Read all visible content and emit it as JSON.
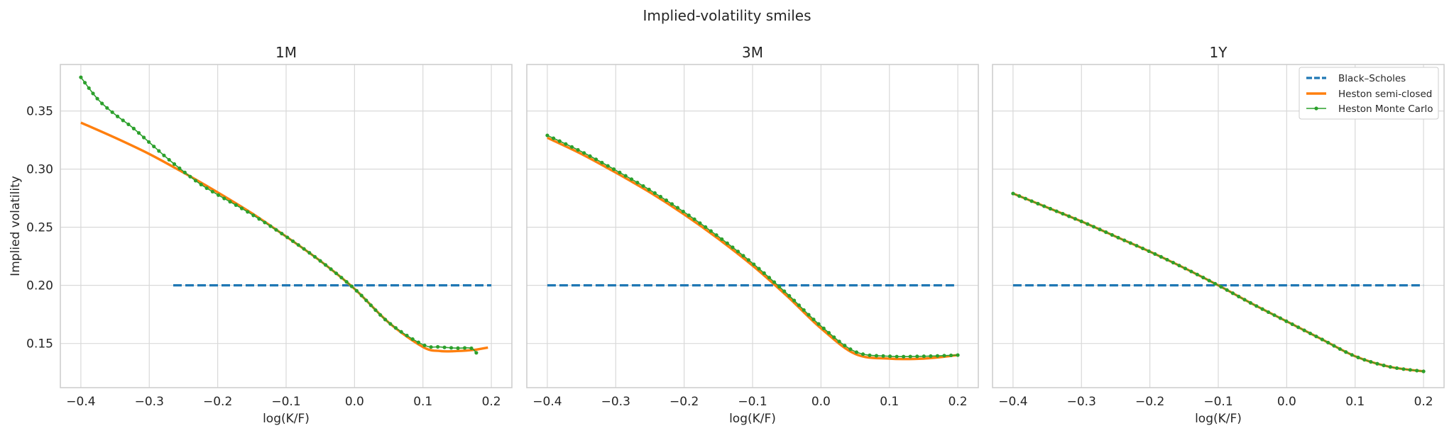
{
  "figure": {
    "suptitle": "Implied-volatility smiles"
  },
  "legend": {
    "placement": "top-right of 1Y panel",
    "entries": [
      "Black–Scholes",
      "Heston semi-closed",
      "Heston Monte Carlo"
    ]
  },
  "colors": {
    "bs": "#1f77b4",
    "heston": "#ff7f0e",
    "mc": "#2ca02c",
    "grid": "#d9d9d9",
    "frame": "#cccccc"
  },
  "chart_data": [
    {
      "type": "line",
      "title": "1M",
      "xlabel": "log(K/F)",
      "ylabel": "Implied volatility",
      "xlim": [
        -0.43,
        0.23
      ],
      "ylim": [
        0.112,
        0.39
      ],
      "xticks": [
        "−0.4",
        "−0.3",
        "−0.2",
        "−0.1",
        "0.0",
        "0.1",
        "0.2"
      ],
      "yticks": [
        "0.15",
        "0.20",
        "0.25",
        "0.30",
        "0.35"
      ],
      "grid": true,
      "series": [
        {
          "name": "Black–Scholes",
          "style": "dashed",
          "x": [
            -0.265,
            0.2
          ],
          "y": [
            0.2,
            0.2
          ]
        },
        {
          "name": "Heston semi-closed",
          "style": "solid",
          "x": [
            -0.4,
            -0.35,
            -0.3,
            -0.25,
            -0.2,
            -0.15,
            -0.1,
            -0.05,
            0.0,
            0.05,
            0.1,
            0.125,
            0.15,
            0.175,
            0.195
          ],
          "y": [
            0.34,
            0.327,
            0.313,
            0.297,
            0.28,
            0.262,
            0.242,
            0.221,
            0.197,
            0.168,
            0.147,
            0.1435,
            0.1435,
            0.1445,
            0.1465
          ]
        },
        {
          "name": "Heston Monte Carlo",
          "style": "line-dots",
          "x": [
            -0.4,
            -0.375,
            -0.35,
            -0.325,
            -0.3,
            -0.275,
            -0.25,
            -0.225,
            -0.2,
            -0.15,
            -0.1,
            -0.05,
            0.0,
            0.05,
            0.1,
            0.125,
            0.15,
            0.17,
            0.178
          ],
          "y": [
            0.379,
            0.36,
            0.347,
            0.336,
            0.323,
            0.31,
            0.298,
            0.287,
            0.278,
            0.261,
            0.242,
            0.221,
            0.197,
            0.168,
            0.149,
            0.147,
            0.146,
            0.146,
            0.142
          ]
        }
      ]
    },
    {
      "type": "line",
      "title": "3M",
      "xlabel": "log(K/F)",
      "ylabel": "",
      "xlim": [
        -0.43,
        0.23
      ],
      "ylim": [
        0.112,
        0.39
      ],
      "xticks": [
        "−0.4",
        "−0.3",
        "−0.2",
        "−0.1",
        "0.0",
        "0.1",
        "0.2"
      ],
      "grid": true,
      "series": [
        {
          "name": "Black–Scholes",
          "style": "dashed",
          "x": [
            -0.4,
            0.2
          ],
          "y": [
            0.2,
            0.2
          ]
        },
        {
          "name": "Heston semi-closed",
          "style": "solid",
          "x": [
            -0.4,
            -0.35,
            -0.3,
            -0.25,
            -0.2,
            -0.15,
            -0.1,
            -0.05,
            0.0,
            0.05,
            0.1,
            0.15,
            0.2
          ],
          "y": [
            0.327,
            0.313,
            0.297,
            0.28,
            0.261,
            0.24,
            0.217,
            0.191,
            0.163,
            0.141,
            0.137,
            0.137,
            0.14
          ]
        },
        {
          "name": "Heston Monte Carlo",
          "style": "line-dots",
          "x": [
            -0.4,
            -0.35,
            -0.3,
            -0.25,
            -0.2,
            -0.15,
            -0.1,
            -0.05,
            0.0,
            0.05,
            0.1,
            0.15,
            0.2
          ],
          "y": [
            0.329,
            0.315,
            0.299,
            0.282,
            0.263,
            0.242,
            0.219,
            0.193,
            0.165,
            0.143,
            0.139,
            0.139,
            0.14
          ]
        }
      ]
    },
    {
      "type": "line",
      "title": "1Y",
      "xlabel": "log(K/F)",
      "ylabel": "",
      "xlim": [
        -0.43,
        0.23
      ],
      "ylim": [
        0.112,
        0.39
      ],
      "xticks": [
        "−0.4",
        "−0.3",
        "−0.2",
        "−0.1",
        "0.0",
        "0.1",
        "0.2"
      ],
      "grid": true,
      "series": [
        {
          "name": "Black–Scholes",
          "style": "dashed",
          "x": [
            -0.4,
            0.2
          ],
          "y": [
            0.2,
            0.2
          ]
        },
        {
          "name": "Heston semi-closed",
          "style": "solid",
          "x": [
            -0.4,
            -0.35,
            -0.3,
            -0.25,
            -0.2,
            -0.15,
            -0.1,
            -0.05,
            0.0,
            0.05,
            0.1,
            0.15,
            0.2
          ],
          "y": [
            0.279,
            0.267,
            0.255,
            0.242,
            0.229,
            0.215,
            0.2,
            0.184,
            0.169,
            0.154,
            0.139,
            0.13,
            0.126
          ]
        },
        {
          "name": "Heston Monte Carlo",
          "style": "line-dots",
          "x": [
            -0.4,
            -0.35,
            -0.3,
            -0.25,
            -0.2,
            -0.15,
            -0.1,
            -0.05,
            0.0,
            0.05,
            0.1,
            0.15,
            0.2
          ],
          "y": [
            0.279,
            0.267,
            0.255,
            0.242,
            0.229,
            0.215,
            0.2,
            0.184,
            0.169,
            0.154,
            0.139,
            0.13,
            0.126
          ]
        }
      ]
    }
  ]
}
